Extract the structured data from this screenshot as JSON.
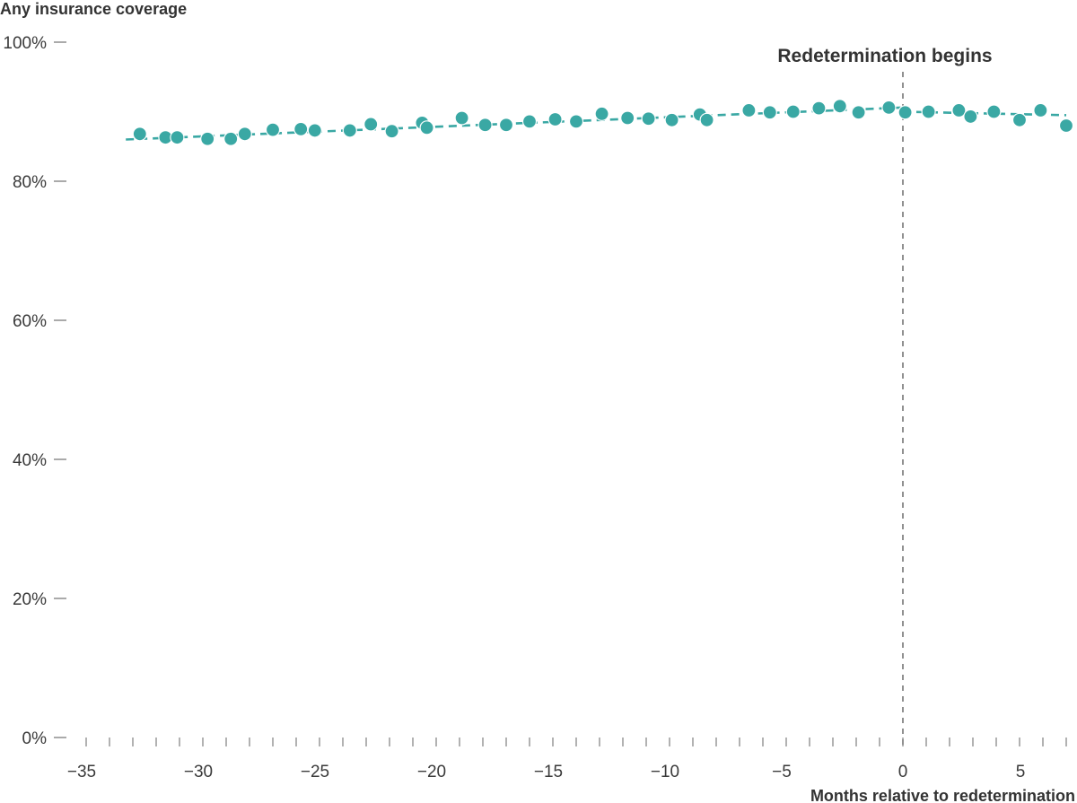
{
  "chart_data": {
    "type": "scatter",
    "ylabel": "Any insurance coverage",
    "xlabel": "Months relative to redetermination",
    "annotation": "Redetermination begins",
    "annotation_x": 0,
    "xlim": [
      -35,
      7
    ],
    "ylim": [
      0,
      100
    ],
    "x_ticks": [
      -35,
      -30,
      -25,
      -20,
      -15,
      -10,
      -5,
      0,
      5
    ],
    "x_tick_labels": [
      "−35",
      "−30",
      "−25",
      "−20",
      "−15",
      "−10",
      "−5",
      "0",
      "5"
    ],
    "y_ticks": [
      0,
      20,
      40,
      60,
      80,
      100
    ],
    "y_tick_labels": [
      "0%",
      "20%",
      "40%",
      "60%",
      "80%",
      "100%"
    ],
    "color": "#3aa8a4",
    "series": [
      {
        "points": [
          [
            -32.7,
            86.8
          ],
          [
            -31.6,
            86.3
          ],
          [
            -31.1,
            86.3
          ],
          [
            -29.8,
            86.1
          ],
          [
            -28.8,
            86.1
          ],
          [
            -28.2,
            86.8
          ],
          [
            -27.0,
            87.4
          ],
          [
            -25.8,
            87.5
          ],
          [
            -25.2,
            87.3
          ],
          [
            -23.7,
            87.3
          ],
          [
            -22.8,
            88.2
          ],
          [
            -21.9,
            87.2
          ],
          [
            -20.6,
            88.4
          ],
          [
            -20.4,
            87.7
          ],
          [
            -18.9,
            89.1
          ],
          [
            -17.9,
            88.1
          ],
          [
            -17.0,
            88.1
          ],
          [
            -16.0,
            88.6
          ],
          [
            -14.9,
            88.9
          ],
          [
            -14.0,
            88.6
          ],
          [
            -12.9,
            89.7
          ],
          [
            -11.8,
            89.1
          ],
          [
            -10.9,
            89.0
          ],
          [
            -9.9,
            88.8
          ],
          [
            -8.7,
            89.6
          ],
          [
            -8.4,
            88.8
          ],
          [
            -6.6,
            90.2
          ],
          [
            -5.7,
            89.9
          ],
          [
            -4.7,
            90.0
          ],
          [
            -3.6,
            90.5
          ],
          [
            -2.7,
            90.8
          ],
          [
            -1.9,
            89.9
          ],
          [
            -0.6,
            90.6
          ],
          [
            0.1,
            89.9
          ],
          [
            1.1,
            90.0
          ],
          [
            2.4,
            90.2
          ],
          [
            2.9,
            89.3
          ],
          [
            3.9,
            90.0
          ],
          [
            5.0,
            88.8
          ],
          [
            5.9,
            90.2
          ],
          [
            7.0,
            88.0
          ]
        ]
      }
    ],
    "trend": [
      {
        "x": [
          -33.3,
          0.0
        ],
        "y": [
          86.0,
          90.6
        ]
      },
      {
        "x": [
          0.0,
          7.0
        ],
        "y": [
          90.0,
          89.5
        ]
      }
    ]
  }
}
